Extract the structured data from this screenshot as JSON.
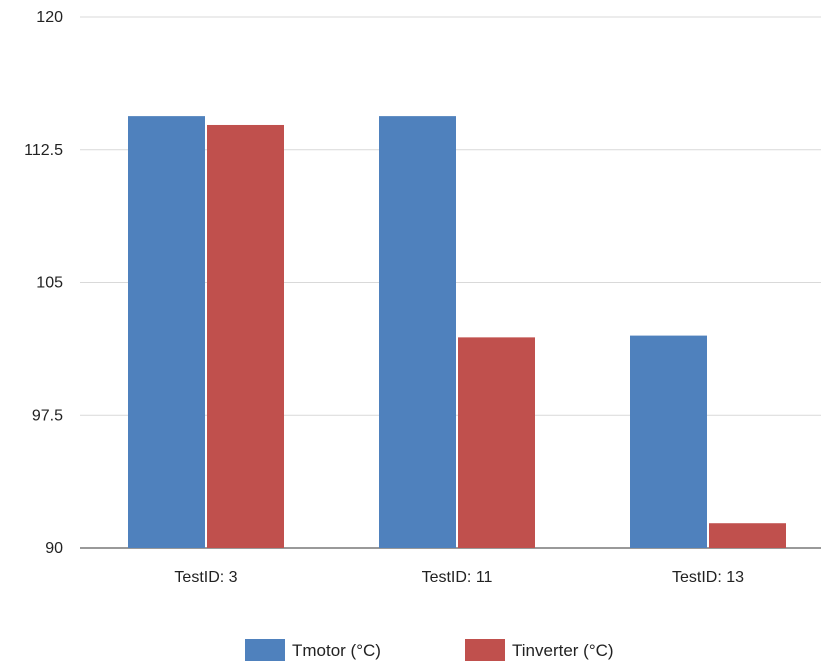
{
  "chart_data": {
    "type": "bar",
    "categories": [
      "TestID: 3",
      "TestID: 11",
      "TestID: 13"
    ],
    "series": [
      {
        "name": "Tmotor (°C)",
        "values": [
          114.4,
          114.4,
          102.0
        ],
        "color": "#4f81bd"
      },
      {
        "name": "Tinverter (°C)",
        "values": [
          113.9,
          101.9,
          91.4
        ],
        "color": "#c0504d"
      }
    ],
    "yticks": [
      "90",
      "97.5",
      "105",
      "112.5",
      "120"
    ],
    "ylim": [
      90,
      120
    ],
    "grid": true,
    "legend_position": "bottom",
    "title": "",
    "xlabel": "",
    "ylabel": ""
  }
}
